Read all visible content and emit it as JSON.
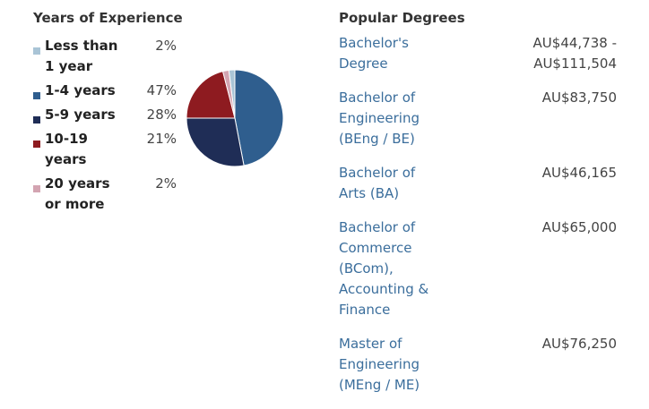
{
  "chart_data": {
    "type": "pie",
    "title": "Years of Experience",
    "categories": [
      "Less than 1 year",
      "1-4 years",
      "5-9 years",
      "10-19 years",
      "20 years or more"
    ],
    "values": [
      2,
      47,
      28,
      21,
      2
    ],
    "value_labels": [
      "2%",
      "47%",
      "28%",
      "21%",
      "2%"
    ],
    "colors": [
      "#a9c4d6",
      "#2f5e8e",
      "#1f2d56",
      "#8e1b20",
      "#d3a4b1"
    ]
  },
  "degrees": {
    "title": "Popular Degrees",
    "items": [
      {
        "name": "Bachelor's Degree",
        "salary": "AU$44,738 - AU$111,504"
      },
      {
        "name": "Bachelor of Engineering (BEng / BE)",
        "salary": "AU$83,750"
      },
      {
        "name": "Bachelor of Arts (BA)",
        "salary": "AU$46,165"
      },
      {
        "name": "Bachelor of Commerce (BCom), Accounting & Finance",
        "salary": "AU$65,000"
      },
      {
        "name": "Master of Engineering (MEng / ME)",
        "salary": "AU$76,250"
      }
    ]
  }
}
